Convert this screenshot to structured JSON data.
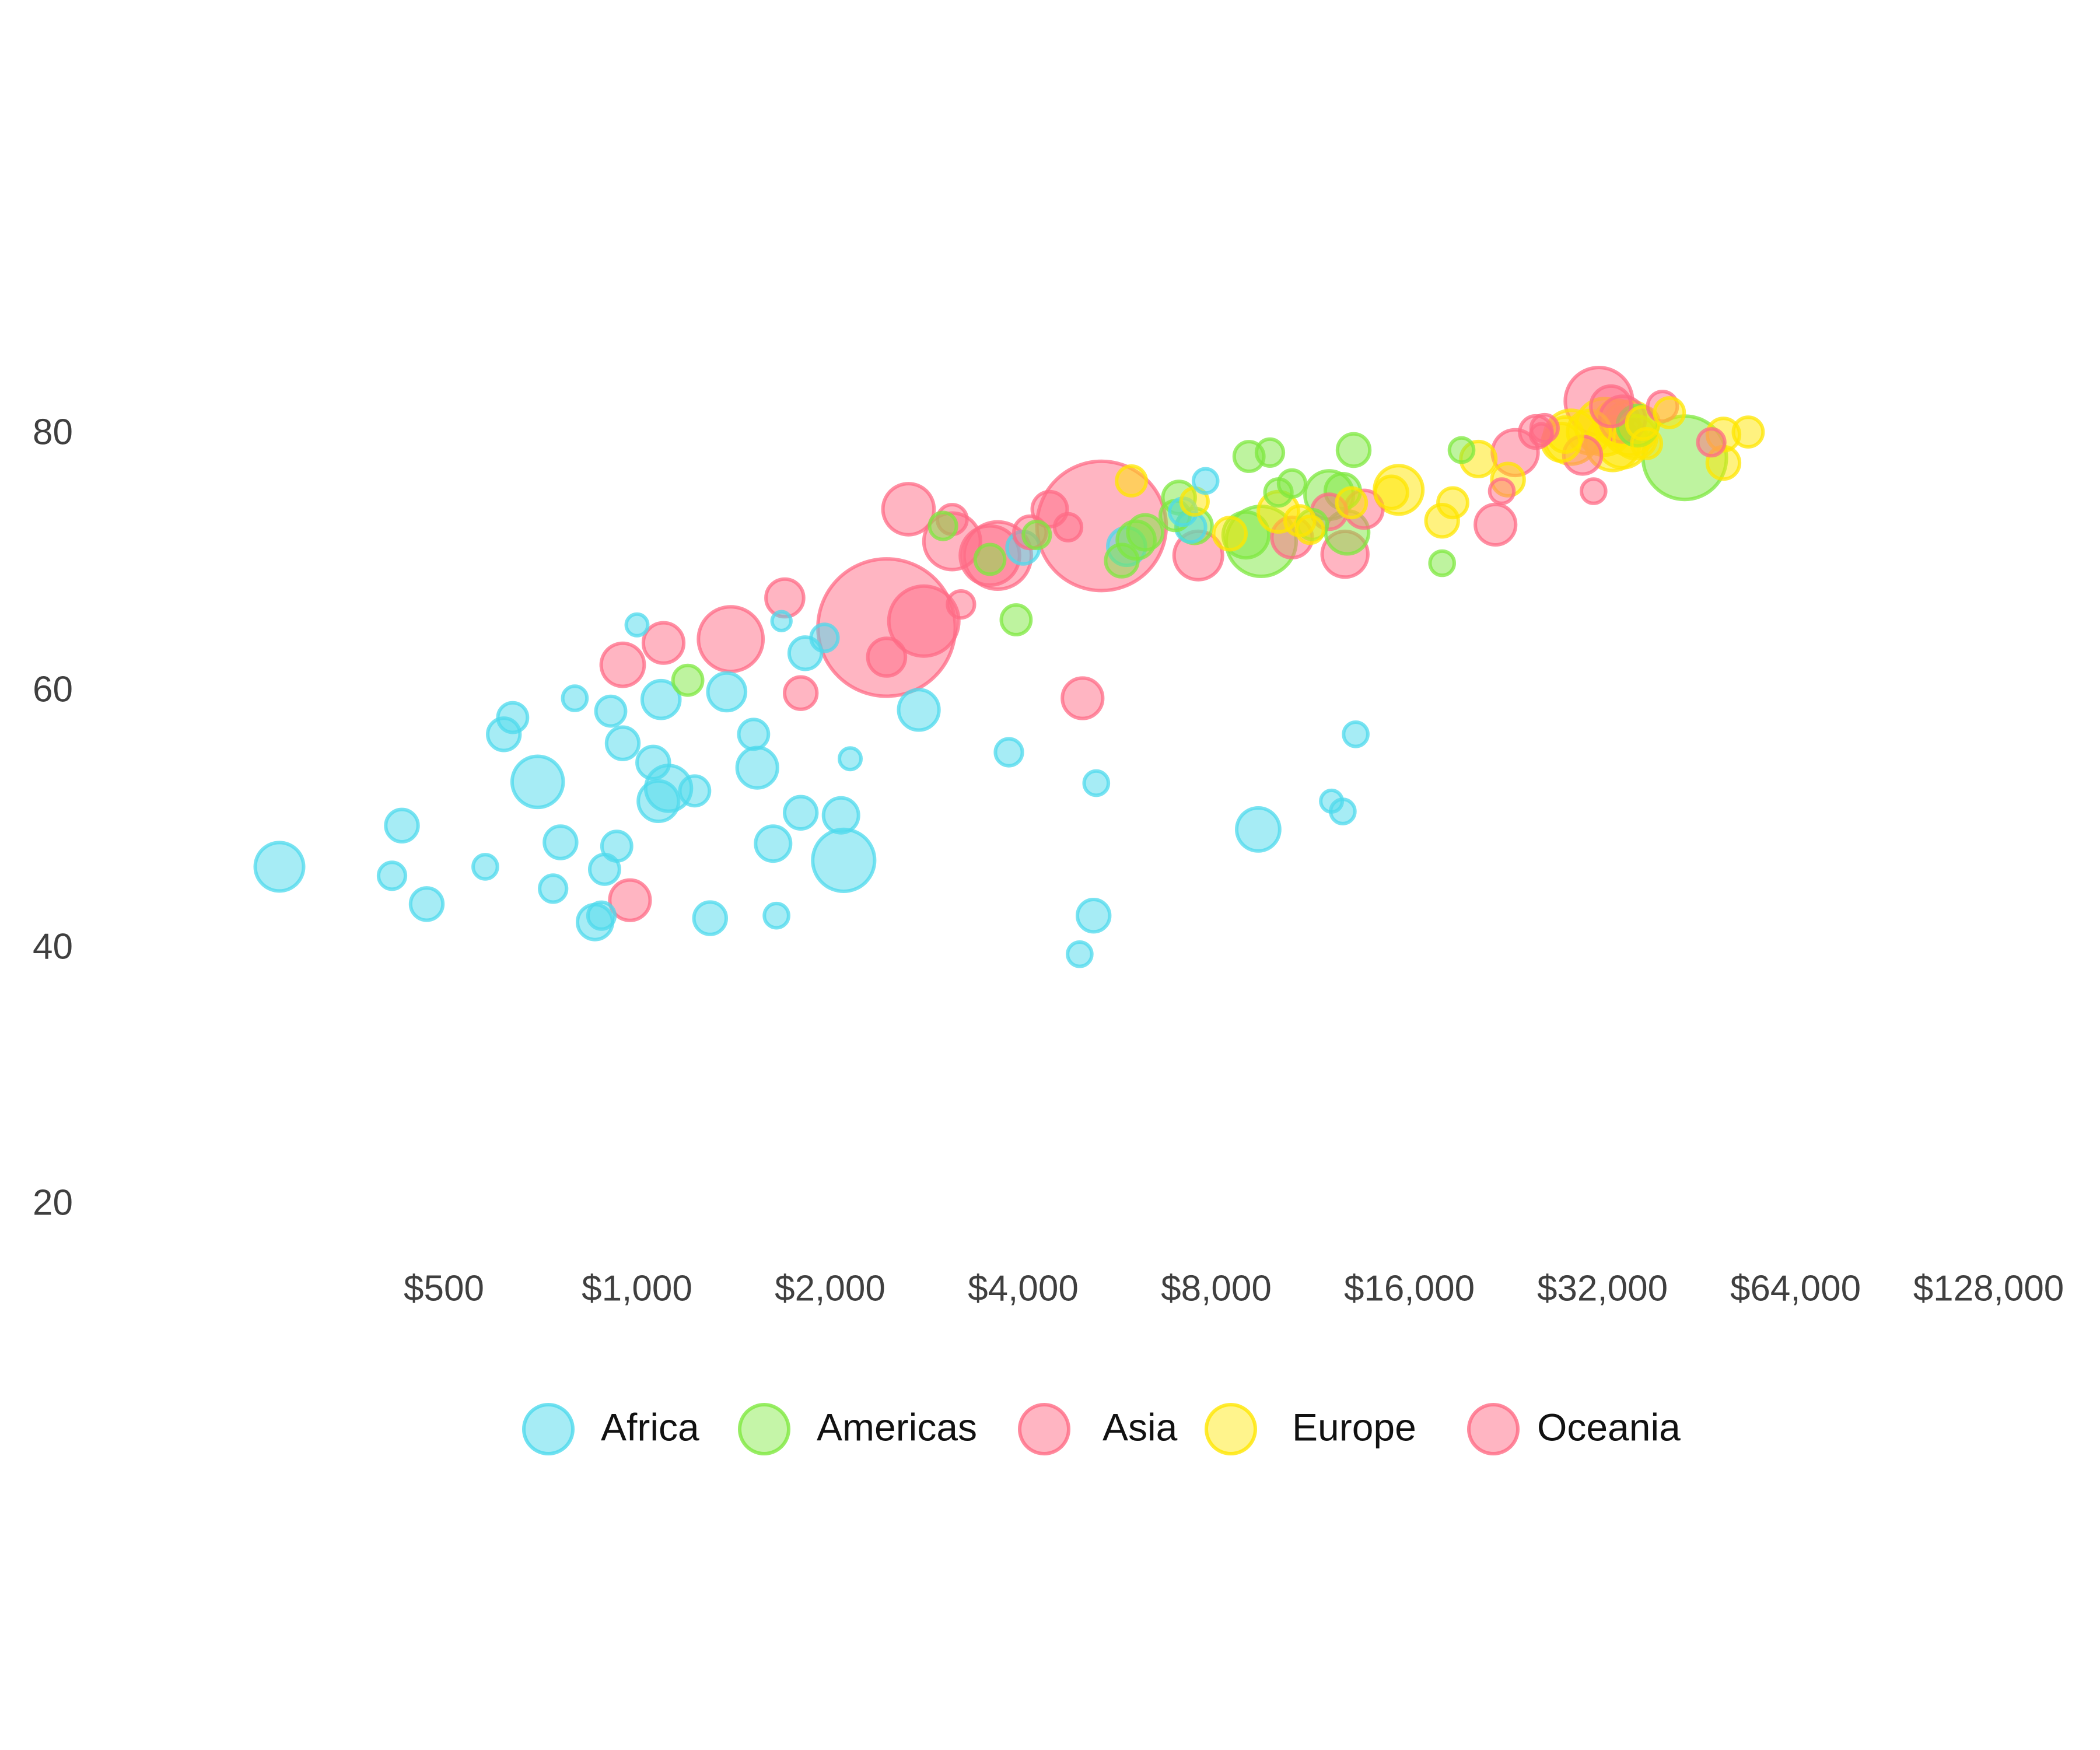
{
  "chart_data": {
    "type": "scatter",
    "subtype": "bubble",
    "title": "",
    "xlabel": "",
    "ylabel": "",
    "x_scale": "log2",
    "x_ticks": [
      500,
      1000,
      2000,
      4000,
      8000,
      16000,
      32000,
      64000,
      128000
    ],
    "x_tick_labels": [
      "$500",
      "$1,000",
      "$2,000",
      "$4,000",
      "$8,000",
      "$16,000",
      "$32,000",
      "$64,000",
      "$128,000"
    ],
    "y_ticks": [
      20,
      40,
      60,
      80
    ],
    "y_tick_labels": [
      "20",
      "40",
      "60",
      "80"
    ],
    "xlim": [
      250,
      128000
    ],
    "ylim": [
      20,
      90
    ],
    "grid": false,
    "legend_position": "bottom",
    "legend": [
      "Africa",
      "Americas",
      "Asia",
      "Europe",
      "Oceania"
    ],
    "colors": {
      "Africa": "#4dd9ec",
      "Americas": "#7ee83f",
      "Asia": "#ff6b85",
      "Europe": "#ffe600",
      "Oceania": "#ff6b85"
    },
    "x_field": "GDP per capita",
    "y_field": "Life expectancy",
    "size_field": "Population (relative bubble radius)",
    "series": [
      {
        "name": "Africa",
        "points": [
          [
            277,
            46.4,
            18
          ],
          [
            430,
            49.6,
            12
          ],
          [
            415,
            45.7,
            10
          ],
          [
            470,
            43.5,
            12
          ],
          [
            580,
            46.4,
            9
          ],
          [
            620,
            56.7,
            12
          ],
          [
            640,
            58.0,
            11
          ],
          [
            700,
            53.0,
            19
          ],
          [
            740,
            44.7,
            10
          ],
          [
            760,
            48.3,
            12
          ],
          [
            800,
            59.5,
            9
          ],
          [
            860,
            42.1,
            13
          ],
          [
            880,
            42.6,
            10
          ],
          [
            890,
            46.2,
            11
          ],
          [
            910,
            58.5,
            11
          ],
          [
            930,
            48.0,
            11
          ],
          [
            950,
            56.0,
            12
          ],
          [
            1000,
            65.2,
            8
          ],
          [
            1060,
            54.5,
            12
          ],
          [
            1080,
            51.5,
            15
          ],
          [
            1090,
            59.4,
            14
          ],
          [
            1120,
            52.5,
            17
          ],
          [
            1230,
            52.3,
            11
          ],
          [
            1300,
            42.4,
            12
          ],
          [
            1380,
            60.0,
            14
          ],
          [
            1520,
            56.7,
            11
          ],
          [
            1540,
            54.1,
            15
          ],
          [
            1630,
            48.2,
            13
          ],
          [
            1650,
            42.6,
            9
          ],
          [
            1680,
            65.5,
            7
          ],
          [
            1800,
            50.6,
            12
          ],
          [
            1830,
            63.0,
            12
          ],
          [
            1960,
            64.2,
            10
          ],
          [
            2080,
            50.4,
            13
          ],
          [
            2100,
            46.9,
            23
          ],
          [
            2150,
            54.8,
            8
          ],
          [
            2750,
            58.6,
            15
          ],
          [
            3800,
            55.3,
            10
          ],
          [
            4000,
            71.2,
            12
          ],
          [
            4900,
            39.6,
            9
          ],
          [
            5200,
            52.9,
            9
          ],
          [
            5150,
            42.6,
            12
          ],
          [
            5800,
            71.3,
            14
          ],
          [
            7100,
            74.0,
            10
          ],
          [
            7300,
            72.8,
            11
          ],
          [
            7700,
            76.4,
            9
          ],
          [
            9300,
            49.3,
            16
          ],
          [
            12100,
            51.5,
            8
          ],
          [
            12600,
            50.7,
            9
          ],
          [
            13200,
            56.7,
            9
          ]
        ]
      },
      {
        "name": "Americas",
        "points": [
          [
            1200,
            60.9,
            11
          ],
          [
            3000,
            72.9,
            10
          ],
          [
            3550,
            70.3,
            11
          ],
          [
            3900,
            65.6,
            11
          ],
          [
            4200,
            72.2,
            10
          ],
          [
            5700,
            70.2,
            12
          ],
          [
            6000,
            71.8,
            14
          ],
          [
            6200,
            72.4,
            13
          ],
          [
            6900,
            73.7,
            11
          ],
          [
            7000,
            75.1,
            12
          ],
          [
            7400,
            72.9,
            13
          ],
          [
            8900,
            72.2,
            17
          ],
          [
            9000,
            78.3,
            11
          ],
          [
            9400,
            71.7,
            26
          ],
          [
            9700,
            78.6,
            10
          ],
          [
            10000,
            75.5,
            10
          ],
          [
            10500,
            76.2,
            10
          ],
          [
            11300,
            73.0,
            11
          ],
          [
            12000,
            75.3,
            18
          ],
          [
            12800,
            72.4,
            16
          ],
          [
            13100,
            78.8,
            12
          ],
          [
            12600,
            75.6,
            13
          ],
          [
            18000,
            70.0,
            9
          ],
          [
            19300,
            78.8,
            9
          ],
          [
            36300,
            80.7,
            15
          ],
          [
            43000,
            78.2,
            31
          ]
        ]
      },
      {
        "name": "Asia",
        "points": [
          [
            975,
            43.8,
            15
          ],
          [
            950,
            62.1,
            16
          ],
          [
            1100,
            63.8,
            15
          ],
          [
            1400,
            64.1,
            24
          ],
          [
            1700,
            67.3,
            14
          ],
          [
            1800,
            59.9,
            12
          ],
          [
            2450,
            62.7,
            14
          ],
          [
            2450,
            65.0,
            51
          ],
          [
            2650,
            74.2,
            19
          ],
          [
            2800,
            65.5,
            26
          ],
          [
            3100,
            73.4,
            11
          ],
          [
            3200,
            66.8,
            10
          ],
          [
            3100,
            71.7,
            21
          ],
          [
            3550,
            70.6,
            22
          ],
          [
            3650,
            70.6,
            25
          ],
          [
            4100,
            72.4,
            12
          ],
          [
            4400,
            74.2,
            13
          ],
          [
            4700,
            72.8,
            10
          ],
          [
            4950,
            59.5,
            15
          ],
          [
            5300,
            72.9,
            48
          ],
          [
            7500,
            70.6,
            18
          ],
          [
            10500,
            72.0,
            15
          ],
          [
            12000,
            74.0,
            13
          ],
          [
            12700,
            70.7,
            17
          ],
          [
            13600,
            74.2,
            14
          ],
          [
            21800,
            73.0,
            15
          ],
          [
            22300,
            75.6,
            9
          ],
          [
            23400,
            78.6,
            17
          ],
          [
            25700,
            80.0,
            8
          ],
          [
            26000,
            80.5,
            10
          ],
          [
            29800,
            78.4,
            14
          ],
          [
            31600,
            82.6,
            25
          ],
          [
            33000,
            82.2,
            15
          ],
          [
            31000,
            75.6,
            9
          ],
          [
            47300,
            79.4,
            10
          ],
          [
            39700,
            82.2,
            11
          ]
        ]
      },
      {
        "name": "Europe",
        "points": [
          [
            5900,
            76.4,
            11
          ],
          [
            7400,
            74.8,
            10
          ],
          [
            8400,
            72.3,
            12
          ],
          [
            10000,
            74.0,
            15
          ],
          [
            10800,
            73.3,
            11
          ],
          [
            11200,
            72.6,
            10
          ],
          [
            13000,
            74.7,
            11
          ],
          [
            15000,
            75.5,
            12
          ],
          [
            15400,
            75.7,
            18
          ],
          [
            18000,
            73.3,
            12
          ],
          [
            18700,
            74.7,
            11
          ],
          [
            20500,
            78.1,
            13
          ],
          [
            22800,
            76.5,
            12
          ],
          [
            27600,
            79.4,
            14
          ],
          [
            28000,
            80.0,
            13
          ],
          [
            28600,
            79.8,
            20
          ],
          [
            30500,
            80.2,
            16
          ],
          [
            32200,
            80.6,
            21
          ],
          [
            33200,
            79.3,
            20
          ],
          [
            33700,
            80.9,
            17
          ],
          [
            34400,
            79.4,
            19
          ],
          [
            35300,
            80.5,
            20
          ],
          [
            36000,
            79.8,
            16
          ],
          [
            37500,
            79.3,
            11
          ],
          [
            37000,
            80.9,
            12
          ],
          [
            40700,
            81.7,
            11
          ],
          [
            49400,
            80.0,
            12
          ],
          [
            49400,
            77.8,
            12
          ],
          [
            54000,
            80.2,
            11
          ]
        ]
      },
      {
        "name": "Oceania",
        "points": [
          [
            34400,
            81.2,
            17
          ],
          [
            25200,
            80.2,
            12
          ]
        ]
      }
    ]
  },
  "legend": {
    "items": [
      {
        "label": "Africa",
        "color": "#4dd9ec"
      },
      {
        "label": "Americas",
        "color": "#7ee83f"
      },
      {
        "label": "Asia",
        "color": "#ff6b85"
      },
      {
        "label": "Europe",
        "color": "#ffe600"
      },
      {
        "label": "Oceania",
        "color": "#ff6b85"
      }
    ]
  },
  "axes": {
    "y_labels": [
      "80",
      "60",
      "40",
      "20"
    ],
    "x_labels": [
      "$500",
      "$1,000",
      "$2,000",
      "$4,000",
      "$8,000",
      "$16,000",
      "$32,000",
      "$64,000",
      "$128,000"
    ]
  }
}
